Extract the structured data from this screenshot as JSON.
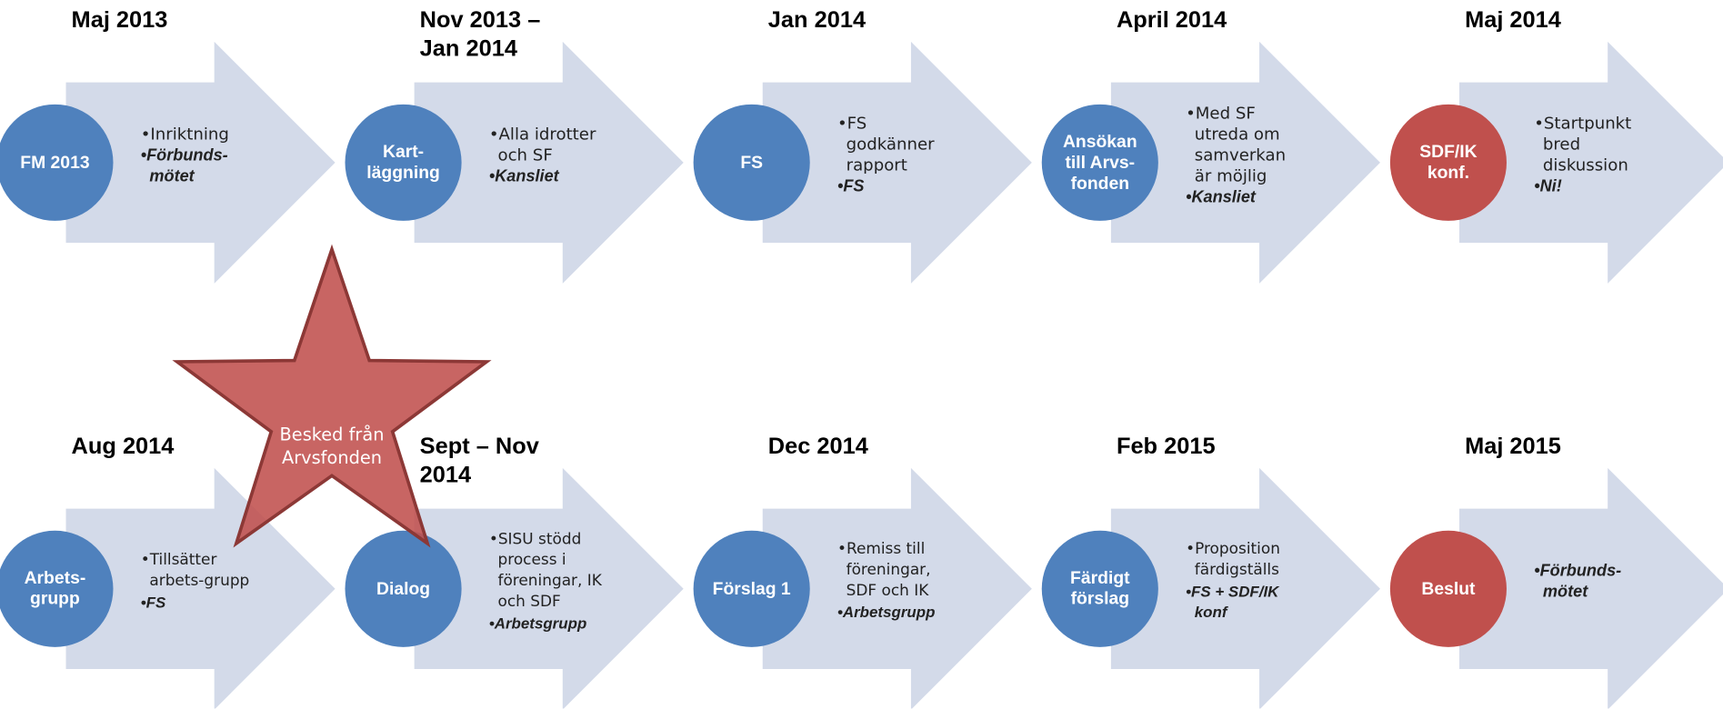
{
  "steps": [
    {
      "date": "Maj 2013",
      "label": "FM 2013",
      "color": "#4f81bd",
      "bullets": [
        {
          "text": "Inriktning",
          "bold": false
        },
        {
          "text": "Förbunds-mötet",
          "bold": true
        }
      ]
    },
    {
      "date": "Nov 2013 – Jan 2014",
      "label": "Kart-läggning",
      "color": "#4f81bd",
      "bullets": [
        {
          "text": "Alla idrotter och SF",
          "bold": false
        },
        {
          "text": "Kansliet",
          "bold": true
        }
      ]
    },
    {
      "date": "Jan 2014",
      "label": "FS",
      "color": "#4f81bd",
      "bullets": [
        {
          "text": "FS godkänner rapport",
          "bold": false
        },
        {
          "text": "FS",
          "bold": true
        }
      ]
    },
    {
      "date": "April 2014",
      "label": "Ansökan till Arvs-fonden",
      "color": "#4f81bd",
      "bullets": [
        {
          "text": "Med SF utreda om samverkan är möjlig",
          "bold": false
        },
        {
          "text": "Kansliet",
          "bold": true
        }
      ]
    },
    {
      "date": "Maj 2014",
      "label": "SDF/IK konf.",
      "color": "#c0504d",
      "bullets": [
        {
          "text": "Startpunkt bred diskussion",
          "bold": false
        },
        {
          "text": "Ni!",
          "bold": true
        }
      ]
    },
    {
      "date": "Aug 2014",
      "label": "Arbets-grupp",
      "color": "#4f81bd",
      "bullets": [
        {
          "text": "Tillsätter arbets-grupp",
          "bold": false,
          "small": true
        },
        {
          "text": "FS",
          "bold": true
        }
      ]
    },
    {
      "date": "Sept – Nov 2014",
      "label": "Dialog",
      "color": "#4f81bd",
      "bullets": [
        {
          "text": "SISU stödd process i föreningar, IK och SDF",
          "bold": false,
          "small": true
        },
        {
          "text": "Arbetsgrupp",
          "bold": true
        }
      ]
    },
    {
      "date": "Dec 2014",
      "label": "Förslag 1",
      "color": "#4f81bd",
      "bullets": [
        {
          "text": "Remiss till föreningar, SDF och IK",
          "bold": false,
          "small": true
        },
        {
          "text": "Arbetsgrupp",
          "bold": true
        }
      ]
    },
    {
      "date": "Feb 2015",
      "label": "Färdigt förslag",
      "color": "#4f81bd",
      "bullets": [
        {
          "text": "Proposition färdigställs",
          "bold": false,
          "small": true
        },
        {
          "text": "FS + SDF/IK konf",
          "bold": true
        }
      ]
    },
    {
      "date": "Maj 2015",
      "label": "Beslut",
      "color": "#c0504d",
      "bullets": [
        {
          "text": "Förbunds-mötet",
          "bold": true
        }
      ]
    }
  ],
  "star": {
    "label": "Besked från Arvsfonden",
    "color": "#c0504d"
  }
}
